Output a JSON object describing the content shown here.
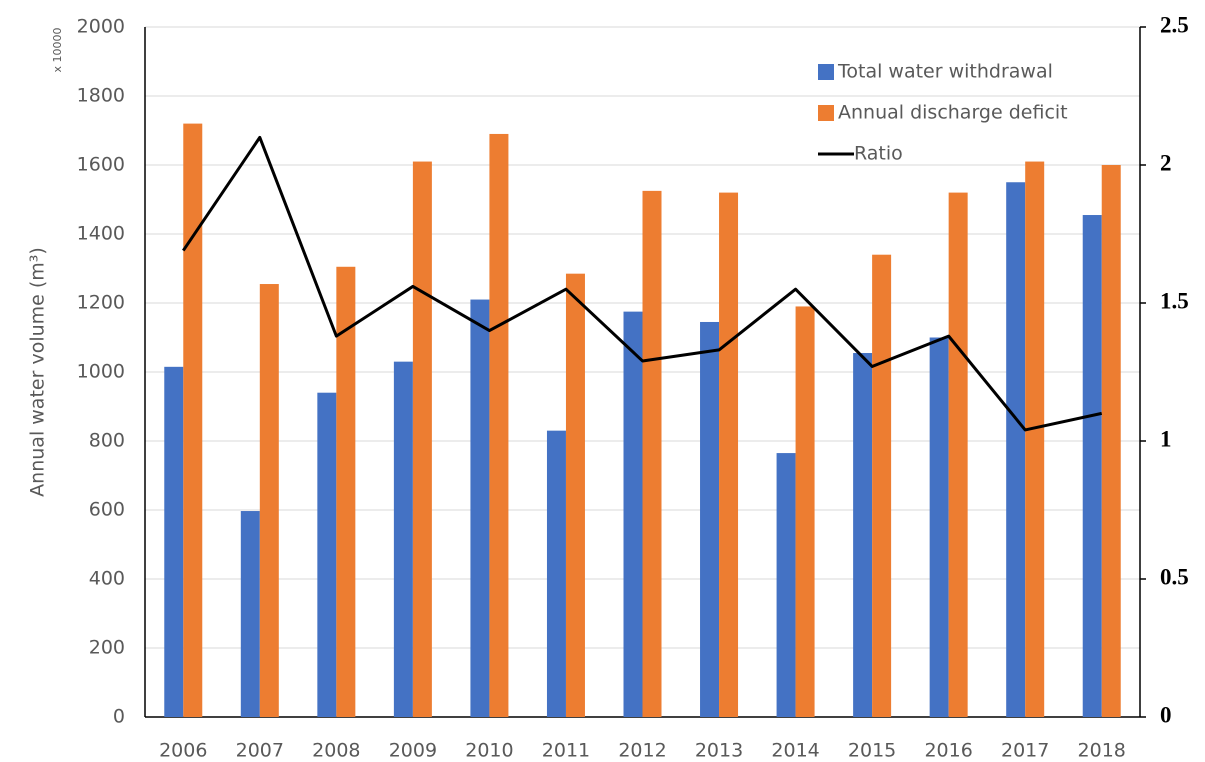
{
  "chart_data": {
    "type": "bar_line",
    "y_label": "Annual water volume (m³)",
    "annotation": "x 10000",
    "categories": [
      "2006",
      "2007",
      "2008",
      "2009",
      "2010",
      "2011",
      "2012",
      "2013",
      "2014",
      "2015",
      "2016",
      "2017",
      "2018"
    ],
    "series": [
      {
        "name": "Total water withdrawal",
        "color": "#4472c4",
        "kind": "bar",
        "values": [
          1015,
          597,
          940,
          1030,
          1210,
          830,
          1175,
          1145,
          765,
          1055,
          1100,
          1550,
          1455
        ]
      },
      {
        "name": "Annual discharge deficit",
        "color": "#ed7d31",
        "kind": "bar",
        "values": [
          1720,
          1255,
          1305,
          1610,
          1690,
          1285,
          1525,
          1520,
          1190,
          1340,
          1520,
          1610,
          1600
        ]
      },
      {
        "name": "Ratio",
        "color": "#000000",
        "kind": "line",
        "axis": "y2",
        "values": [
          1.69,
          2.1,
          1.38,
          1.56,
          1.4,
          1.55,
          1.29,
          1.33,
          1.55,
          1.27,
          1.38,
          1.04,
          1.1
        ]
      }
    ],
    "ylim": [
      0,
      2000
    ],
    "yticks": [
      0,
      200,
      400,
      600,
      800,
      1000,
      1200,
      1400,
      1600,
      1800,
      2000
    ],
    "y2lim": [
      0,
      2.5
    ],
    "y2ticks": [
      0,
      0.5,
      1,
      1.5,
      2,
      2.5
    ],
    "grid": true,
    "legend": "upper right"
  }
}
